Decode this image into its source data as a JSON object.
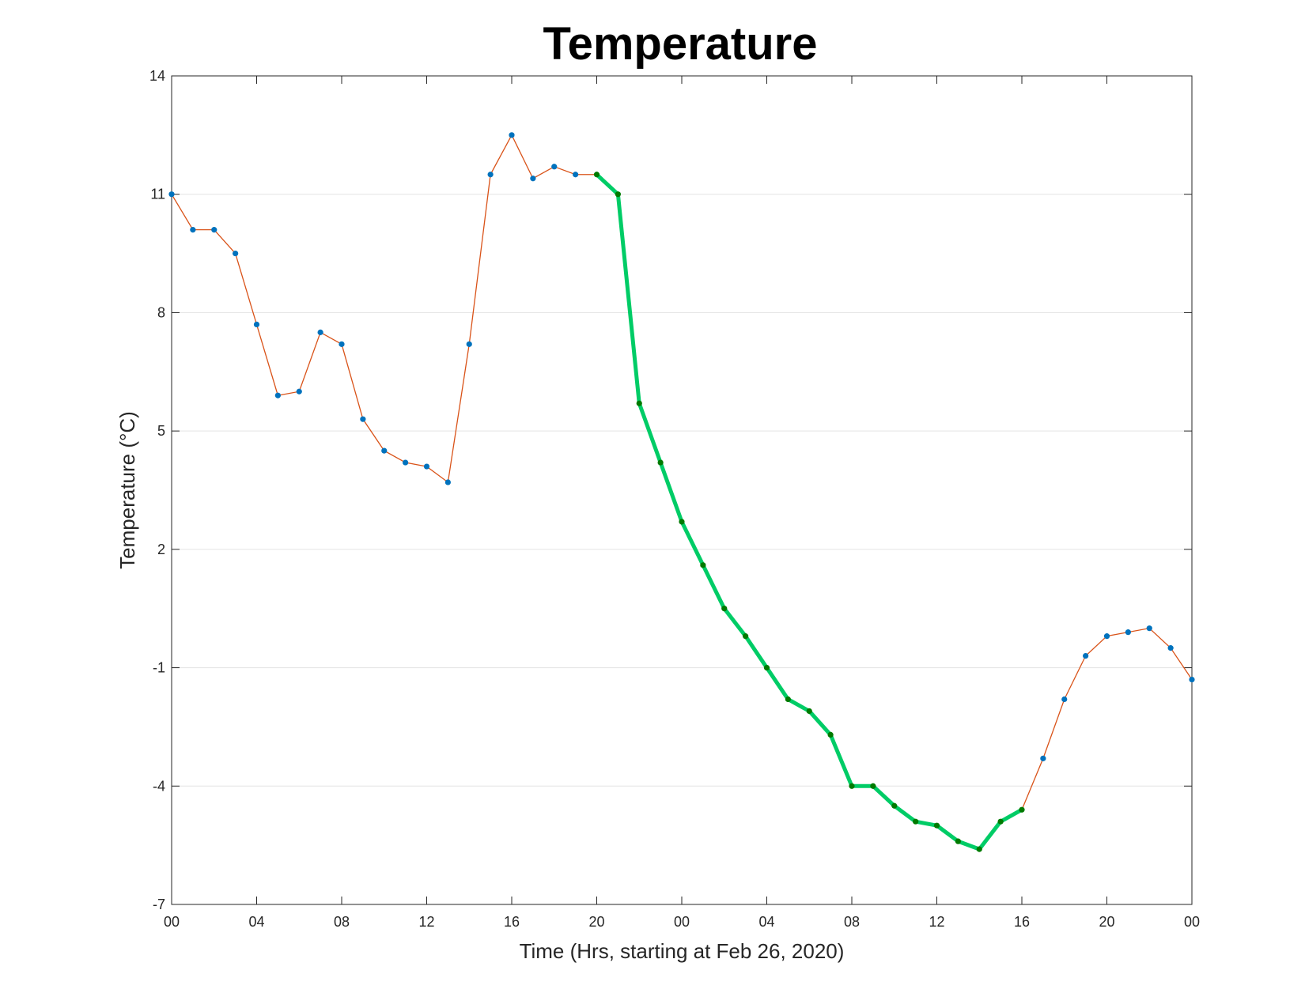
{
  "chart_data": {
    "type": "line",
    "title": "Temperature",
    "xlabel": "Time (Hrs, starting at Feb 26, 2020)",
    "ylabel": "Temperature (°C)",
    "ylim": [
      -7,
      14
    ],
    "xlim": [
      "2020-02-26 00:00",
      "2020-02-28 00:00"
    ],
    "yticks": [
      -7,
      -4,
      -1,
      2,
      5,
      8,
      11,
      14
    ],
    "ytick_labels": [
      "-7",
      "-4",
      "-1",
      "2",
      "5",
      "8",
      "11",
      "14"
    ],
    "xticks": [
      "2020-02-26 00:00",
      "2020-02-26 04:00",
      "2020-02-26 08:00",
      "2020-02-26 12:00",
      "2020-02-26 16:00",
      "2020-02-26 20:00",
      "2020-02-27 00:00",
      "2020-02-27 04:00",
      "2020-02-27 08:00",
      "2020-02-27 12:00",
      "2020-02-27 16:00",
      "2020-02-27 20:00",
      "2020-02-28 00:00"
    ],
    "xtick_labels": [
      "00",
      "04",
      "08",
      "12",
      "16",
      "20",
      "00",
      "04",
      "08",
      "12",
      "16",
      "20",
      "00"
    ],
    "grid": "horizontal",
    "x": [
      "2020-02-26 00:00",
      "2020-02-26 01:00",
      "2020-02-26 02:00",
      "2020-02-26 03:00",
      "2020-02-26 04:00",
      "2020-02-26 05:00",
      "2020-02-26 06:00",
      "2020-02-26 07:00",
      "2020-02-26 08:00",
      "2020-02-26 09:00",
      "2020-02-26 10:00",
      "2020-02-26 11:00",
      "2020-02-26 12:00",
      "2020-02-26 13:00",
      "2020-02-26 14:00",
      "2020-02-26 15:00",
      "2020-02-26 16:00",
      "2020-02-26 17:00",
      "2020-02-26 18:00",
      "2020-02-26 19:00",
      "2020-02-26 20:00",
      "2020-02-26 21:00",
      "2020-02-26 22:00",
      "2020-02-26 23:00",
      "2020-02-27 00:00",
      "2020-02-27 01:00",
      "2020-02-27 02:00",
      "2020-02-27 03:00",
      "2020-02-27 04:00",
      "2020-02-27 05:00",
      "2020-02-27 06:00",
      "2020-02-27 07:00",
      "2020-02-27 08:00",
      "2020-02-27 09:00",
      "2020-02-27 10:00",
      "2020-02-27 11:00",
      "2020-02-27 12:00",
      "2020-02-27 13:00",
      "2020-02-27 14:00",
      "2020-02-27 15:00",
      "2020-02-27 16:00",
      "2020-02-27 17:00",
      "2020-02-27 18:00",
      "2020-02-27 19:00",
      "2020-02-27 20:00",
      "2020-02-27 21:00",
      "2020-02-27 22:00",
      "2020-02-27 23:00",
      "2020-02-28 00:00"
    ],
    "series": [
      {
        "values": [
          11,
          10.1,
          10.1,
          9.5,
          7.7,
          5.9,
          6.0,
          7.5,
          7.2,
          5.3,
          4.5,
          4.2,
          4.1,
          3.7,
          7.2,
          11.5,
          12.5,
          11.4,
          11.7,
          11.5,
          11.5,
          11,
          5.7,
          4.2,
          2.7,
          1.6,
          0.5,
          -0.2,
          -1,
          -1.8,
          -2.1,
          -2.7,
          -4,
          -4,
          -4.5,
          -4.9,
          -5,
          -5.4,
          -5.6,
          -4.9,
          -4.6,
          -3.3,
          -1.8,
          -0.7,
          -0.2,
          -0.1,
          0,
          -0.5,
          -1.3
        ],
        "color": "#d95319",
        "marker_color": "#0072bd"
      },
      {
        "range": [
          "2020-02-26 20:00",
          "2020-02-27 16:00"
        ],
        "color": "#00cc66",
        "marker_color": "#007a00"
      }
    ]
  }
}
